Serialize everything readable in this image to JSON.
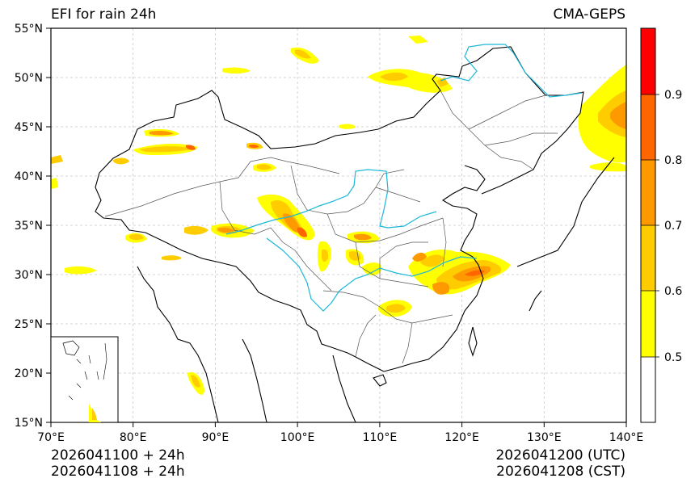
{
  "title": "EFI for rain 24h",
  "source": "CMA-GEPS",
  "footer": {
    "init_utc": "2026041100 + 24h",
    "init_cst": "2026041108 + 24h",
    "valid_utc": "2026041200 (UTC)",
    "valid_cst": "2026041208 (CST)"
  },
  "map": {
    "lon_range": [
      70,
      140
    ],
    "lat_range": [
      15,
      55
    ],
    "lon_ticks": [
      "70°E",
      "80°E",
      "90°E",
      "100°E",
      "110°E",
      "120°E",
      "130°E",
      "140°E"
    ],
    "lat_ticks": [
      "15°N",
      "20°N",
      "25°N",
      "30°N",
      "35°N",
      "40°N",
      "45°N",
      "50°N",
      "55°N"
    ],
    "grid": true
  },
  "colorbar": {
    "levels": [
      0.5,
      0.6,
      0.7,
      0.8,
      0.9
    ],
    "tick_labels": [
      "0.5",
      "0.6",
      "0.7",
      "0.8",
      "0.9"
    ],
    "colors": [
      "#ffffff",
      "#ffff00",
      "#ffcc00",
      "#ff9900",
      "#ff6600",
      "#ff0000"
    ]
  },
  "colors": {
    "border": "#000000",
    "province": "#555555",
    "river": "#1ab8d8",
    "grid": "#c8c8c8"
  }
}
